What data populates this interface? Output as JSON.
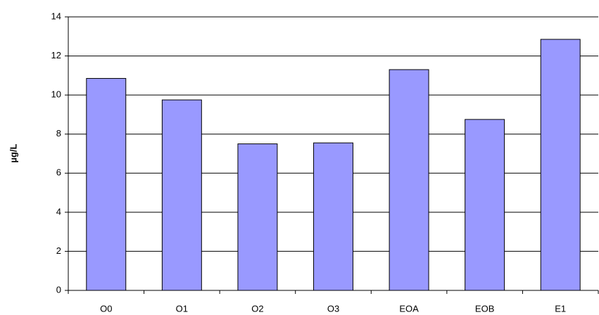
{
  "chart_data": {
    "type": "bar",
    "y_label": "µg/L",
    "categories": [
      "O0",
      "O1",
      "O2",
      "O3",
      "EOA",
      "EOB",
      "E1"
    ],
    "values": [
      10.85,
      9.75,
      7.5,
      7.55,
      11.3,
      8.75,
      12.85
    ],
    "color": "#9999ff",
    "ylim": [
      0,
      14
    ],
    "yticks": [
      0,
      2,
      4,
      6,
      8,
      10,
      12,
      14
    ],
    "grid": true
  }
}
